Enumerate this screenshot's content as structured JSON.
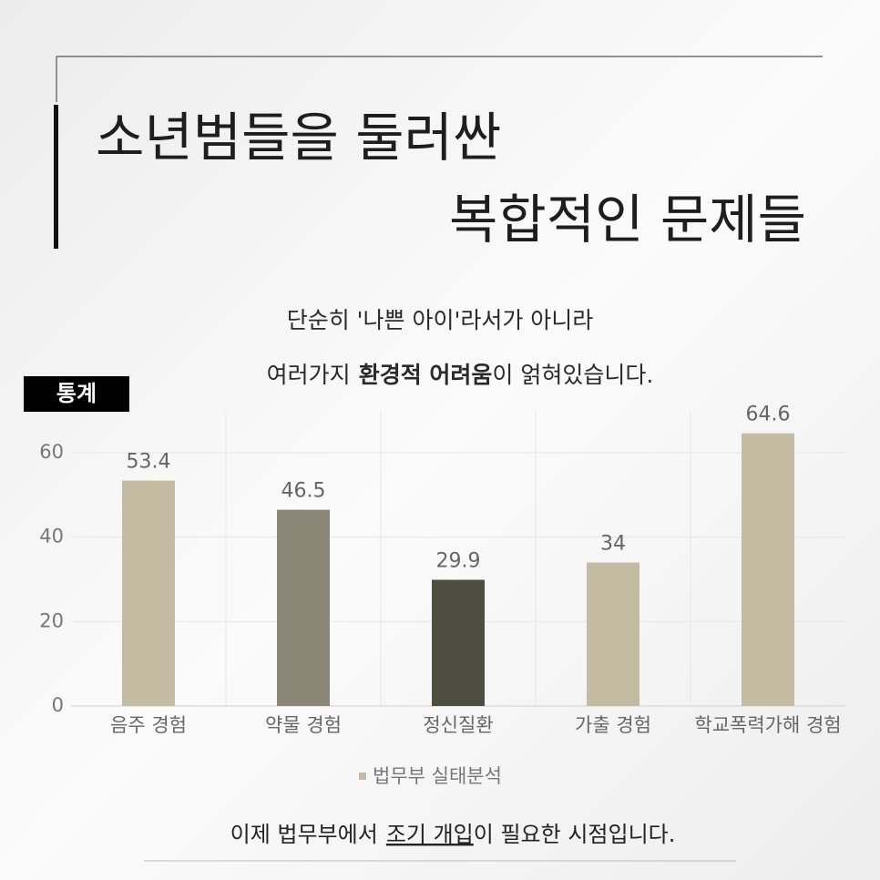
{
  "header": {
    "title_line1": "소년범들을 둘러싼",
    "title_line2": "복합적인 문제들"
  },
  "intro": {
    "line1": "단순히 '나쁜 아이'라서가 아니라",
    "line2_plain": "여러가지",
    "line2_bold": "환경적 어려움",
    "line2_tail": "이 얽혀있습니다."
  },
  "badge": "통계",
  "chart_data": {
    "type": "bar",
    "categories": [
      "음주 경험",
      "약물 경험",
      "정신질환",
      "가출 경험",
      "학교폭력가해 경험"
    ],
    "series": [
      {
        "name": "법무부 실태분석",
        "color": "#c4bba3",
        "values": [
          53.4,
          46.5,
          29.9,
          34,
          64.6
        ],
        "bar_colors": [
          "#c4bba3",
          "#8c8676",
          "#4f4c40",
          "#c4bba3",
          "#c4bba3"
        ]
      }
    ],
    "ylim": [
      0,
      70
    ],
    "yticks": [
      0,
      20,
      40,
      60
    ],
    "grid": true
  },
  "footer": {
    "plain": "이제 법무부에서",
    "underline": "조기 개입",
    "tail": "이 필요한 시점입니다."
  }
}
